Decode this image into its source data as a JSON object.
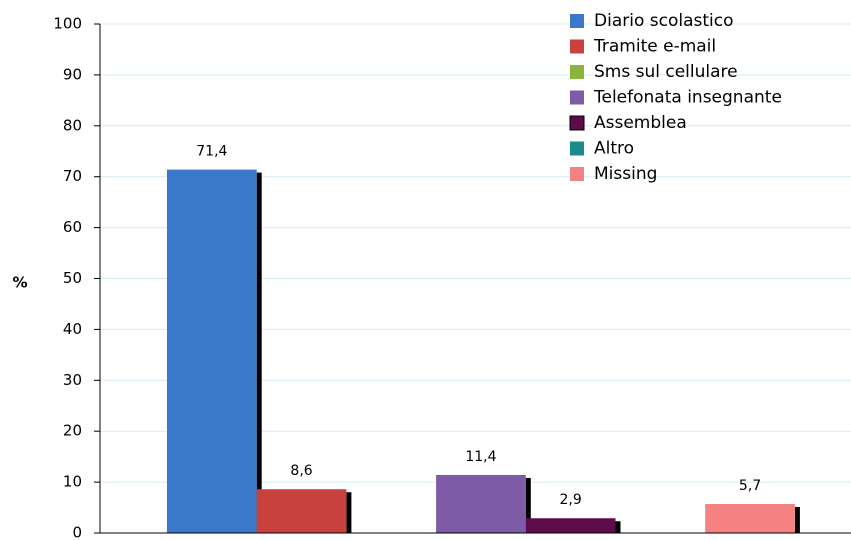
{
  "chart_data": {
    "type": "bar",
    "ylabel": "%",
    "ylim": [
      0,
      100
    ],
    "yticks": [
      0,
      10,
      20,
      30,
      40,
      50,
      60,
      70,
      80,
      90,
      100
    ],
    "grid": true,
    "legend": "top-right",
    "series": [
      {
        "name": "Diario scolastico",
        "color": "#3a78c9",
        "values": [
          71.4
        ],
        "value_labels": [
          "71,4"
        ]
      },
      {
        "name": "Tramite e-mail",
        "color": "#c8413c",
        "values": [
          8.6
        ],
        "value_labels": [
          "8,6"
        ]
      },
      {
        "name": "Sms sul cellulare",
        "color": "#8ab53b",
        "values": [
          null
        ]
      },
      {
        "name": "Telefonata insegnante",
        "color": "#7d5ba6",
        "values": [
          11.4
        ],
        "value_labels": [
          "11,4"
        ]
      },
      {
        "name": "Assemblea",
        "color": "#5e0b4b",
        "values": [
          2.9
        ],
        "value_labels": [
          "2,9"
        ]
      },
      {
        "name": "Altro",
        "color": "#1a8a8a",
        "values": [
          null
        ]
      },
      {
        "name": "Missing",
        "color": "#f58282",
        "values": [
          5.7
        ],
        "value_labels": [
          "5,7"
        ]
      }
    ]
  }
}
